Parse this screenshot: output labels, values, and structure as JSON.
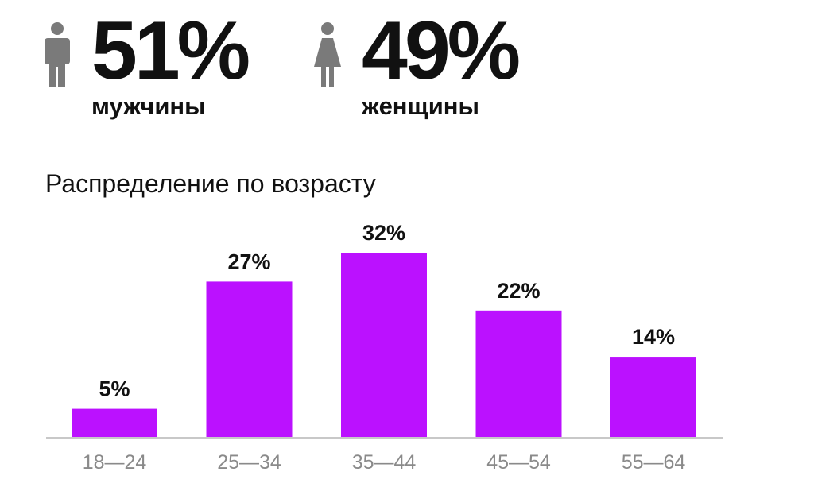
{
  "gender": {
    "male": {
      "percent": "51%",
      "label": "мужчины",
      "icon": "male-person-icon"
    },
    "female": {
      "percent": "49%",
      "label": "женщины",
      "icon": "female-person-icon"
    }
  },
  "colors": {
    "bar": "#bb11ff",
    "icon": "#7a7a7a",
    "axis": "#c8c8c8",
    "tick": "#8a8a8a"
  },
  "chart_data": {
    "type": "bar",
    "title": "Распределение по возрасту",
    "categories": [
      "18—24",
      "25—34",
      "35—44",
      "45—54",
      "55—64"
    ],
    "values": [
      5,
      27,
      32,
      22,
      14
    ],
    "data_labels": [
      "5%",
      "27%",
      "32%",
      "22%",
      "14%"
    ],
    "ylim": [
      0,
      32
    ],
    "grid": false,
    "legend": "none"
  }
}
